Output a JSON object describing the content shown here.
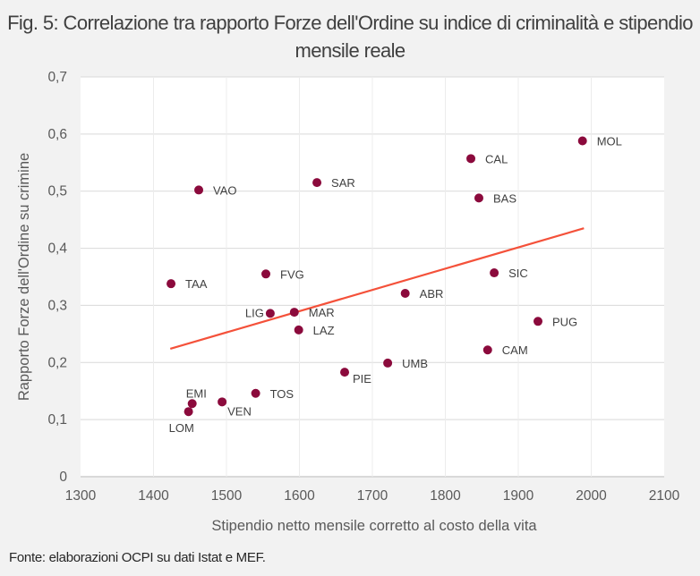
{
  "chart_data": {
    "type": "scatter",
    "title": "Fig. 5: Correlazione tra rapporto Forze dell'Ordine su indice di criminalità e stipendio mensile reale",
    "xlabel": "Stipendio netto mensile corretto al costo della vita",
    "ylabel": "Rapporto Forze dell'Ordine su crimine",
    "xlim": [
      1300,
      2100
    ],
    "ylim": [
      0,
      0.7
    ],
    "xticks": [
      1300,
      1400,
      1500,
      1600,
      1700,
      1800,
      1900,
      2000,
      2100
    ],
    "yticks": [
      0,
      0.1,
      0.2,
      0.3,
      0.4,
      0.5,
      0.6,
      0.7
    ],
    "ytick_labels": [
      "0",
      "0,1",
      "0,2",
      "0,3",
      "0,4",
      "0,5",
      "0,6",
      "0,7"
    ],
    "grid": true,
    "points": [
      {
        "label": "LOM",
        "x": 1448,
        "y": 0.114
      },
      {
        "label": "EMI",
        "x": 1453,
        "y": 0.128
      },
      {
        "label": "VEN",
        "x": 1494,
        "y": 0.131
      },
      {
        "label": "TOS",
        "x": 1540,
        "y": 0.146
      },
      {
        "label": "TAA",
        "x": 1424,
        "y": 0.338
      },
      {
        "label": "VAO",
        "x": 1462,
        "y": 0.502
      },
      {
        "label": "FVG",
        "x": 1554,
        "y": 0.355
      },
      {
        "label": "LIG",
        "x": 1560,
        "y": 0.286
      },
      {
        "label": "MAR",
        "x": 1593,
        "y": 0.288
      },
      {
        "label": "LAZ",
        "x": 1599,
        "y": 0.257
      },
      {
        "label": "SAR",
        "x": 1624,
        "y": 0.515
      },
      {
        "label": "PIE",
        "x": 1662,
        "y": 0.183
      },
      {
        "label": "UMB",
        "x": 1721,
        "y": 0.199
      },
      {
        "label": "ABR",
        "x": 1745,
        "y": 0.321
      },
      {
        "label": "CAL",
        "x": 1835,
        "y": 0.557
      },
      {
        "label": "BAS",
        "x": 1846,
        "y": 0.488
      },
      {
        "label": "SIC",
        "x": 1867,
        "y": 0.357
      },
      {
        "label": "CAM",
        "x": 1858,
        "y": 0.222
      },
      {
        "label": "PUG",
        "x": 1927,
        "y": 0.272
      },
      {
        "label": "MOL",
        "x": 1988,
        "y": 0.588
      }
    ],
    "trendline": {
      "type": "linear",
      "x": [
        1423,
        1990
      ],
      "y": [
        0.224,
        0.435
      ]
    },
    "colors": {
      "points": "#8b0a3c",
      "trendline": "#f4513a",
      "grid": "#d9d9d9",
      "plot_bg": "#ffffff",
      "page_bg": "#f2f2f2"
    }
  },
  "footer": "Fonte: elaborazioni OCPI su dati Istat e MEF."
}
